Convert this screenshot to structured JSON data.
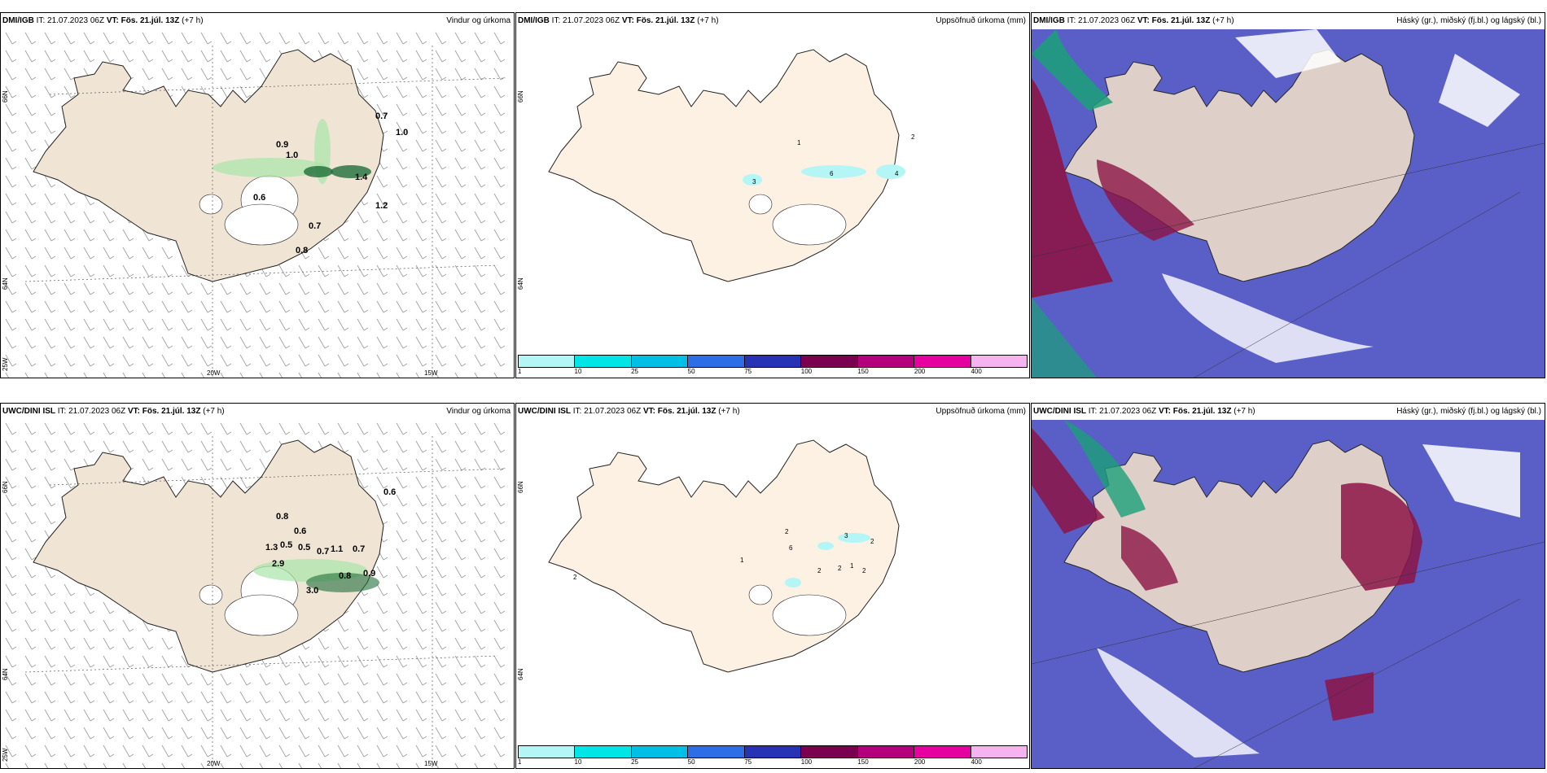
{
  "panels": [
    {
      "model": "DMI/IGB",
      "it": "IT: 21.07.2023 06Z",
      "vt_label": "VT:",
      "vt": "Fös. 21.júl. 13Z",
      "offset": "(+7 h)",
      "title": "Vindur og úrkoma"
    },
    {
      "model": "DMI/IGB",
      "it": "IT: 21.07.2023 06Z",
      "vt_label": "VT:",
      "vt": "Fös. 21.júl. 13Z",
      "offset": "(+7 h)",
      "title": "Uppsöfnuð úrkoma (mm)"
    },
    {
      "model": "DMI/IGB",
      "it": "IT: 21.07.2023 06Z",
      "vt_label": "VT:",
      "vt": "Fös. 21.júl. 13Z",
      "offset": "(+7 h)",
      "title": "Háský (gr.), miðský (fj.bl.) og lágský (bl.)"
    },
    {
      "model": "UWC/DINI ISL",
      "it": "IT: 21.07.2023 06Z",
      "vt_label": "VT:",
      "vt": "Fös. 21.júl. 13Z",
      "offset": "(+7 h)",
      "title": "Vindur og úrkoma"
    },
    {
      "model": "UWC/DINI ISL",
      "it": "IT: 21.07.2023 06Z",
      "vt_label": "VT:",
      "vt": "Fös. 21.júl. 13Z",
      "offset": "(+7 h)",
      "title": "Uppsöfnuð úrkoma (mm)"
    },
    {
      "model": "UWC/DINI ISL",
      "it": "IT: 21.07.2023 06Z",
      "vt_label": "VT:",
      "vt": "Fös. 21.júl. 13Z",
      "offset": "(+7 h)",
      "title": "Háský (gr.), miðský (fj.bl.) og lágský (bl.)"
    }
  ],
  "grid_labels": {
    "lat_66": "66N",
    "lat_64": "64N",
    "lon_25": "25W",
    "lon_20": "20W",
    "lon_15": "15W"
  },
  "colorbar": {
    "ticks": [
      "1",
      "10",
      "25",
      "50",
      "75",
      "100",
      "150",
      "200",
      "400"
    ],
    "colors": [
      "#b4f5f5",
      "#00e6e6",
      "#00bfe6",
      "#2d6ee6",
      "#2832b4",
      "#7a0050",
      "#b4007d",
      "#e600a0",
      "#f5b4f0"
    ]
  },
  "wind_precip_labels_top": [
    "0.7",
    "0.9",
    "1.0",
    "1.4",
    "0.6",
    "0.7",
    "0.8",
    "1.0",
    "1.2"
  ],
  "wind_precip_labels_bottom": [
    "0.6",
    "0.8",
    "0.6",
    "1.3",
    "0.5",
    "0.5",
    "0.7",
    "1.1",
    "0.7",
    "2.9",
    "3.0",
    "0.8",
    "0.9"
  ],
  "accum_labels_top": [
    "1",
    "2",
    "3",
    "6",
    "4"
  ],
  "accum_labels_bottom": [
    "2",
    "3",
    "2",
    "6",
    "1",
    "2",
    "2",
    "1",
    "2",
    "2"
  ],
  "colors": {
    "land": "#f0e4d4",
    "land_accum": "#fdf1e4",
    "sea": "#ffffff",
    "cloud_sea": "#5a5fc8",
    "high_cloud": "#8c1446",
    "mid_cloud": "#1aa078"
  }
}
